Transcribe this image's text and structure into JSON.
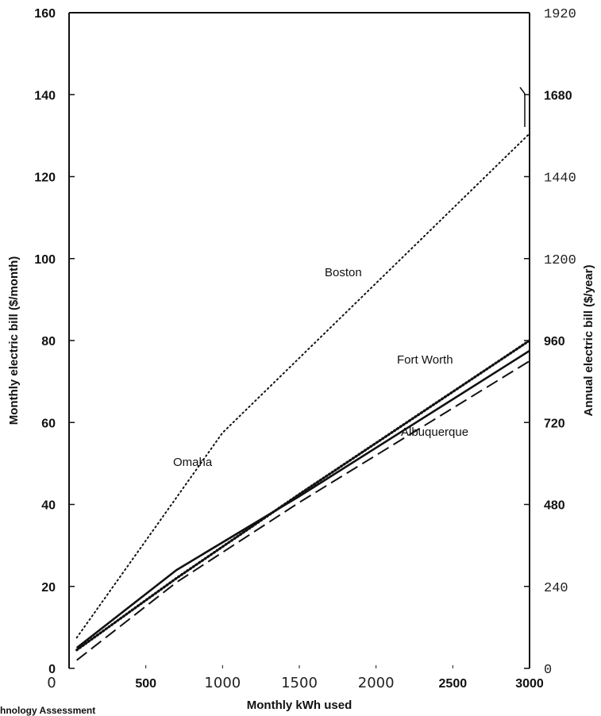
{
  "chart_data": {
    "type": "line",
    "xlabel": "Monthly kWh used",
    "ylabel": "Monthly electric bill ($/month)",
    "y2label": "Annual electric bill ($/year)",
    "xlim": [
      0,
      3000
    ],
    "ylim": [
      0,
      160
    ],
    "y2lim": [
      0,
      1920
    ],
    "x_ticks": [
      "0",
      "500",
      "1000",
      "1500",
      "2000",
      "2500",
      "3000"
    ],
    "y_ticks": [
      "0",
      "20",
      "40",
      "60",
      "80",
      "100",
      "120",
      "140",
      "160"
    ],
    "y2_ticks": [
      "0",
      "240",
      "480",
      "720",
      "960",
      "1200",
      "1440",
      "1680",
      "1920"
    ],
    "series": [
      {
        "name": "Boston",
        "style": "dotted-sparse",
        "color": "#111111",
        "x": [
          50,
          1000,
          3000
        ],
        "y": [
          7.5,
          57.5,
          130.5
        ]
      },
      {
        "name": "Fort Worth",
        "style": "dotted-dense",
        "color": "#111111",
        "x": [
          50,
          700,
          1500,
          3000
        ],
        "y": [
          4.5,
          22,
          42.5,
          80
        ]
      },
      {
        "name": "Omaha",
        "style": "solid",
        "color": "#111111",
        "x": [
          50,
          700,
          1500,
          3000
        ],
        "y": [
          5,
          24,
          42,
          77.5
        ]
      },
      {
        "name": "Albuquerque",
        "style": "dashed",
        "color": "#111111",
        "x": [
          50,
          700,
          1500,
          3000
        ],
        "y": [
          2,
          21,
          40.5,
          75
        ]
      }
    ],
    "source_fragment": "hnology  Assessment"
  }
}
